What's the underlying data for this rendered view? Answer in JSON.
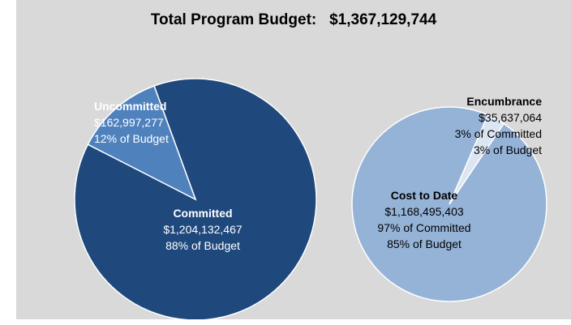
{
  "title": {
    "text": "Total Program Budget:",
    "amount": "$1,367,129,744"
  },
  "colors": {
    "committed": "#1f497d",
    "uncommitted": "#4f81bd",
    "cost_to_date": "#95b3d7",
    "encumbrance": "#dce6f2",
    "background": "#d9d9d9"
  },
  "chart_data": [
    {
      "type": "pie",
      "slices": [
        {
          "name": "Committed",
          "value": 1204132467,
          "label": "$1,204,132,467",
          "pct_label": "88% of Budget"
        },
        {
          "name": "Uncommitted",
          "value": 162997277,
          "label": "$162,997,277",
          "pct_label": "12% of Budget"
        }
      ]
    },
    {
      "type": "pie",
      "slices": [
        {
          "name": "Cost to Date",
          "value": 1168495403,
          "label": "$1,168,495,403",
          "pct_label": "97% of Committed",
          "pct_label2": "85% of Budget"
        },
        {
          "name": "Encumbrance",
          "value": 35637064,
          "label": "$35,637,064",
          "pct_label": "3% of Committed",
          "pct_label2": "3% of Budget"
        }
      ]
    }
  ]
}
